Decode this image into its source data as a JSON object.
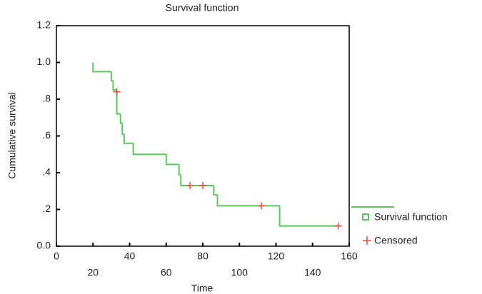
{
  "chart_data": {
    "type": "step",
    "title": "Survival function",
    "xlabel": "Time",
    "ylabel": "Cumulative survival",
    "xlim": [
      0,
      160
    ],
    "xticks": [
      0,
      20,
      40,
      60,
      80,
      100,
      120,
      140,
      160
    ],
    "ylim": [
      0,
      1.2
    ],
    "yticks": [
      {
        "value": 0,
        "label": "0.0"
      },
      {
        "value": 0.2,
        "label": ".2"
      },
      {
        "value": 0.4,
        "label": ".4"
      },
      {
        "value": 0.6,
        "label": ".6"
      },
      {
        "value": 0.8,
        "label": ".8"
      },
      {
        "value": 1,
        "label": "1.0"
      },
      1.2
    ],
    "series": [
      {
        "name": "Survival function",
        "color": "#5cc85c",
        "x": [
          20,
          20,
          30,
          31,
          33,
          35,
          36,
          37,
          42,
          60,
          67,
          68,
          86,
          88,
          122,
          154
        ],
        "values": [
          1.0,
          0.95,
          0.9,
          0.85,
          0.72,
          0.67,
          0.61,
          0.56,
          0.5,
          0.445,
          0.39,
          0.33,
          0.28,
          0.22,
          0.11,
          0.11
        ]
      },
      {
        "name": "Censored",
        "color": "#ec4a3c",
        "x": [
          33,
          73,
          80,
          112,
          154
        ],
        "values": [
          0.84,
          0.33,
          0.33,
          0.22,
          0.11
        ]
      }
    ]
  }
}
